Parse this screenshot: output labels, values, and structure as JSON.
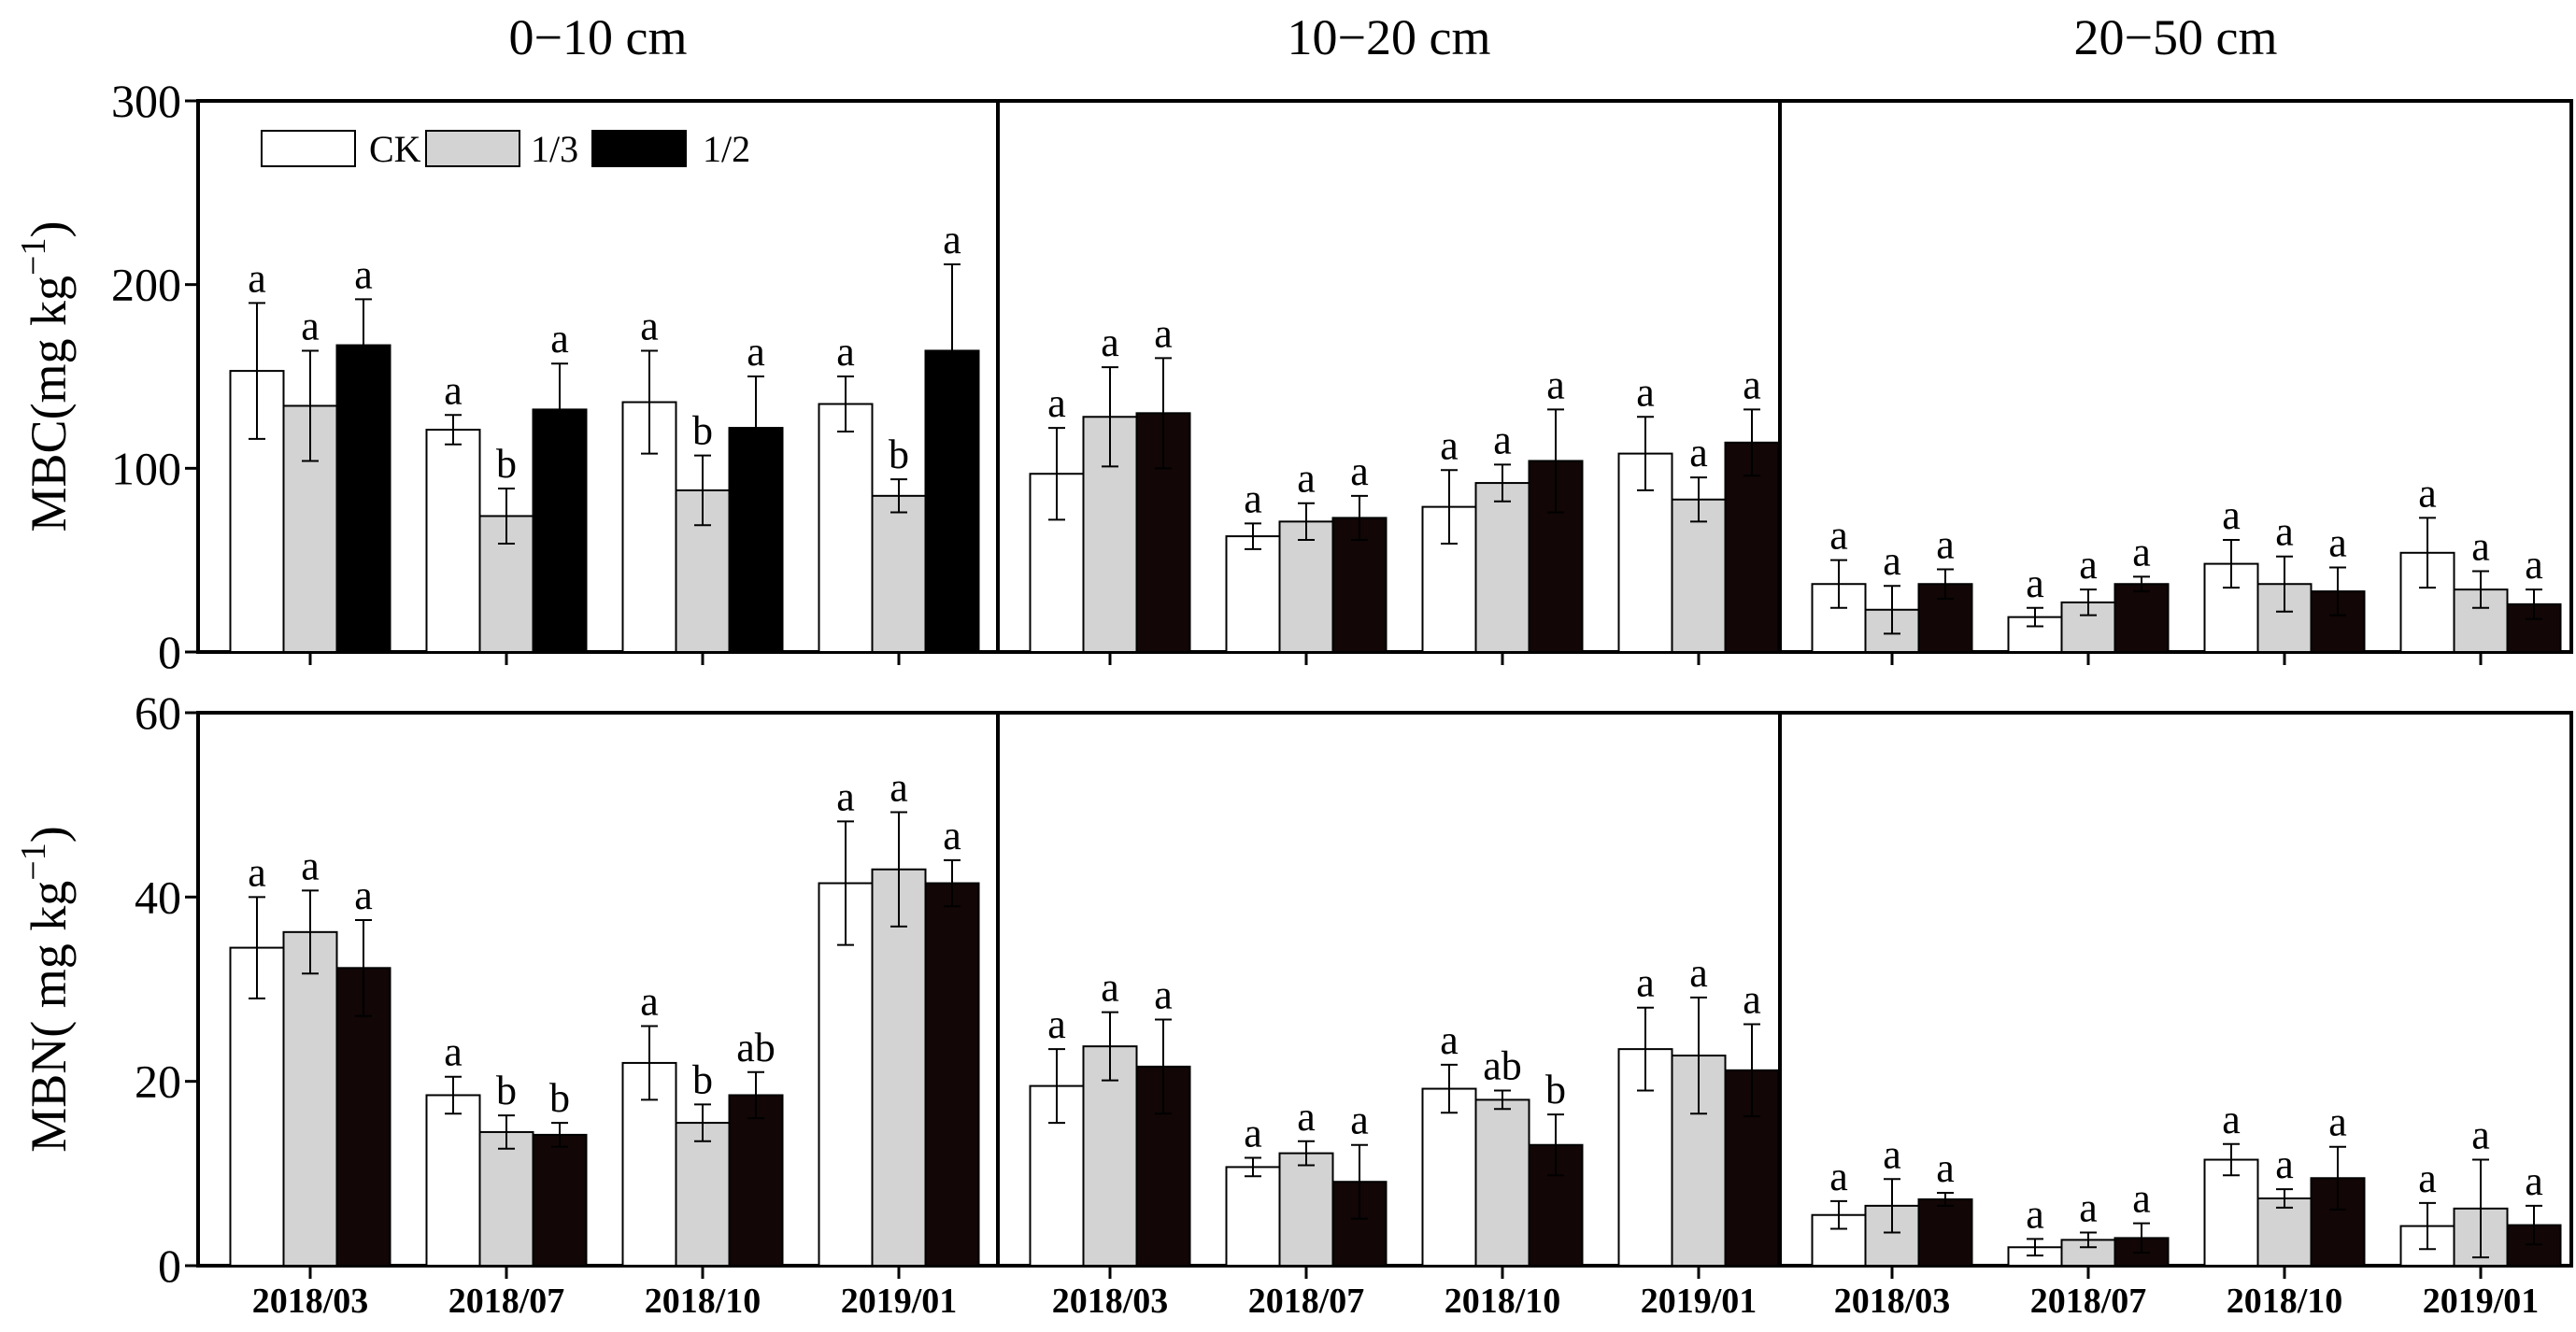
{
  "chart_data": {
    "type": "bar",
    "depths": [
      "0−10 cm",
      "10−20 cm",
      "20−50 cm"
    ],
    "categories": [
      "2018/03",
      "2018/07",
      "2018/10",
      "2019/01"
    ],
    "legend": [
      {
        "name": "CK",
        "color": "#ffffff"
      },
      {
        "name": "1/3",
        "color": "#d3d3d3"
      },
      {
        "name": "1/2",
        "color": "#000000"
      }
    ],
    "panels": [
      {
        "id": "mbc",
        "ylabel": "MBC(mg kg",
        "ylabel_sup": "−1",
        "ylabel_close": ")",
        "ylim": [
          0,
          300
        ],
        "yticks": [
          "0",
          "100",
          "200",
          "300"
        ],
        "tick_values": [
          0,
          100,
          200,
          300
        ],
        "groups": [
          {
            "values": [
              [
                153,
                134,
                167
              ],
              [
                121,
                74,
                132
              ],
              [
                136,
                88,
                122
              ],
              [
                135,
                85,
                164
              ]
            ],
            "errors": [
              [
                37,
                30,
                25
              ],
              [
                8,
                15,
                25
              ],
              [
                28,
                19,
                28
              ],
              [
                15,
                9,
                47
              ]
            ],
            "letters": [
              [
                "a",
                "a",
                "a"
              ],
              [
                "a",
                "b",
                "a"
              ],
              [
                "a",
                "b",
                "a"
              ],
              [
                "a",
                "b",
                "a"
              ]
            ],
            "fills": [
              "#ffffff",
              "#d3d3d3",
              "#000000"
            ]
          },
          {
            "values": [
              [
                97,
                128,
                130
              ],
              [
                63,
                71,
                73
              ],
              [
                79,
                92,
                104
              ],
              [
                108,
                83,
                114
              ]
            ],
            "errors": [
              [
                25,
                27,
                30
              ],
              [
                7,
                10,
                12
              ],
              [
                20,
                10,
                28
              ],
              [
                20,
                12,
                18
              ]
            ],
            "letters": [
              [
                "a",
                "a",
                "a"
              ],
              [
                "a",
                "a",
                "a"
              ],
              [
                "a",
                "a",
                "a"
              ],
              [
                "a",
                "a",
                "a"
              ]
            ],
            "fills": [
              "#ffffff",
              "#d3d3d3",
              "#120606"
            ]
          },
          {
            "values": [
              [
                37,
                23,
                37
              ],
              [
                19,
                27,
                37
              ],
              [
                48,
                37,
                33
              ],
              [
                54,
                34,
                26
              ]
            ],
            "errors": [
              [
                13,
                13,
                8
              ],
              [
                5,
                7,
                4
              ],
              [
                13,
                15,
                13
              ],
              [
                19,
                10,
                8
              ]
            ],
            "letters": [
              [
                "a",
                "a",
                "a"
              ],
              [
                "a",
                "a",
                "a"
              ],
              [
                "a",
                "a",
                "a"
              ],
              [
                "a",
                "a",
                "a"
              ]
            ],
            "fills": [
              "#ffffff",
              "#d3d3d3",
              "#120606"
            ]
          }
        ]
      },
      {
        "id": "mbn",
        "ylabel": "MBN( mg kg",
        "ylabel_sup": "−1",
        "ylabel_close": ")",
        "ylim": [
          0,
          60
        ],
        "yticks": [
          "0",
          "20",
          "40",
          "60"
        ],
        "tick_values": [
          0,
          20,
          40,
          60
        ],
        "groups": [
          {
            "values": [
              [
                34.5,
                36.2,
                32.3
              ],
              [
                18.5,
                14.5,
                14.2
              ],
              [
                22,
                15.5,
                18.5
              ],
              [
                41.5,
                43,
                41.5
              ]
            ],
            "errors": [
              [
                5.5,
                4.5,
                5.2
              ],
              [
                2,
                1.8,
                1.3
              ],
              [
                4,
                2,
                2.5
              ],
              [
                6.7,
                6.2,
                2.5
              ]
            ],
            "letters": [
              [
                "a",
                "a",
                "a"
              ],
              [
                "a",
                "b",
                "b"
              ],
              [
                "a",
                "b",
                "ab"
              ],
              [
                "a",
                "a",
                "a"
              ]
            ],
            "fills": [
              "#ffffff",
              "#d3d3d3",
              "#120606"
            ]
          },
          {
            "values": [
              [
                19.5,
                23.8,
                21.6
              ],
              [
                10.7,
                12.2,
                9.1
              ],
              [
                19.2,
                18,
                13.1
              ],
              [
                23.5,
                22.8,
                21.2
              ]
            ],
            "errors": [
              [
                4,
                3.7,
                5.1
              ],
              [
                1,
                1.3,
                4
              ],
              [
                2.6,
                1,
                3.3
              ],
              [
                4.5,
                6.3,
                5
              ]
            ],
            "letters": [
              [
                "a",
                "a",
                "a"
              ],
              [
                "a",
                "a",
                "a"
              ],
              [
                "a",
                "ab",
                "b"
              ],
              [
                "a",
                "a",
                "a"
              ]
            ],
            "fills": [
              "#ffffff",
              "#d3d3d3",
              "#120606"
            ]
          },
          {
            "values": [
              [
                5.5,
                6.5,
                7.2
              ],
              [
                2,
                2.8,
                3
              ],
              [
                11.5,
                7.3,
                9.5
              ],
              [
                4.3,
                6.2,
                4.4
              ]
            ],
            "errors": [
              [
                1.5,
                2.9,
                0.7
              ],
              [
                0.9,
                0.8,
                1.6
              ],
              [
                1.7,
                1,
                3.4
              ],
              [
                2.5,
                5.3,
                2.1
              ]
            ],
            "letters": [
              [
                "a",
                "a",
                "a"
              ],
              [
                "a",
                "a",
                "a"
              ],
              [
                "a",
                "a",
                "a"
              ],
              [
                "a",
                "a",
                "a"
              ]
            ],
            "fills": [
              "#ffffff",
              "#d3d3d3",
              "#120606"
            ]
          }
        ]
      }
    ]
  }
}
